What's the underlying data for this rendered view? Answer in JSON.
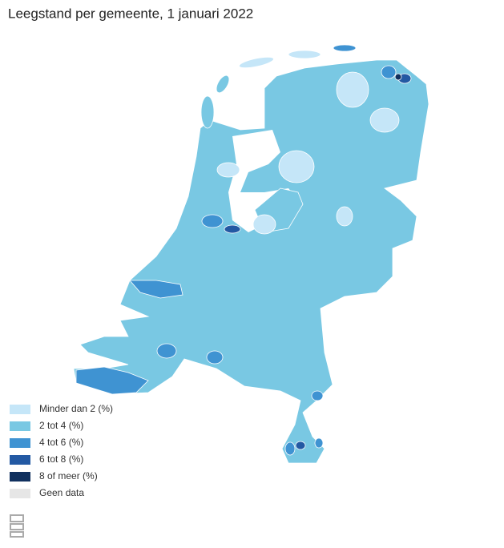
{
  "title": "Leegstand per gemeente, 1 januari 2022",
  "legend": [
    {
      "label": "Minder dan 2 (%)",
      "color": "#c5e6f8"
    },
    {
      "label": "2 tot 4 (%)",
      "color": "#79c8e3"
    },
    {
      "label": "4 tot 6 (%)",
      "color": "#3f93d2"
    },
    {
      "label": "6 tot 8 (%)",
      "color": "#2359a3"
    },
    {
      "label": "8 of meer (%)",
      "color": "#10305e"
    },
    {
      "label": "Geen data",
      "color": "#e6e6e6"
    }
  ]
}
